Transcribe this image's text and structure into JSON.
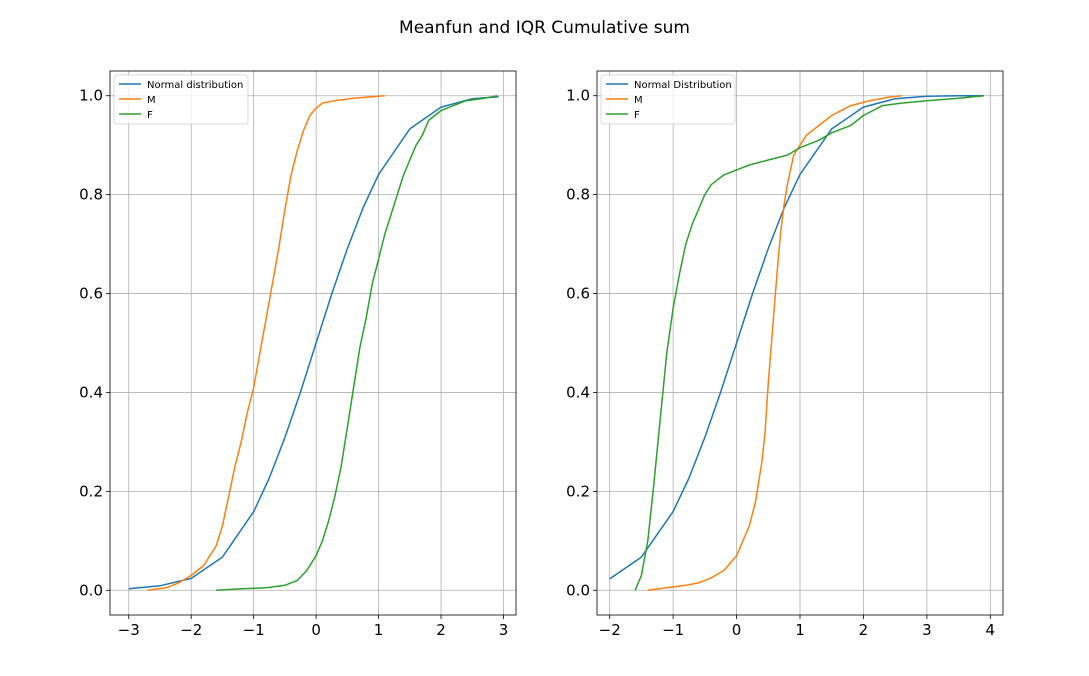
{
  "figure": {
    "title": "Meanfun and IQR Cumulative sum"
  },
  "chart_data": [
    {
      "type": "line",
      "title": "",
      "xlabel": "",
      "ylabel": "",
      "xlim": [
        -3.3,
        3.2
      ],
      "ylim": [
        -0.05,
        1.05
      ],
      "xticks": [
        -3,
        -2,
        -1,
        0,
        1,
        2,
        3
      ],
      "xtick_labels": [
        "−3",
        "−2",
        "−1",
        "0",
        "1",
        "2",
        "3"
      ],
      "yticks": [
        0.0,
        0.2,
        0.4,
        0.6,
        0.8,
        1.0
      ],
      "ytick_labels": [
        "0.0",
        "0.2",
        "0.4",
        "0.6",
        "0.8",
        "1.0"
      ],
      "grid": true,
      "legend_position": "top-left",
      "series": [
        {
          "name": "Normal distribution",
          "color": "#1f77b4",
          "x": [
            -3,
            -2.5,
            -2,
            -1.5,
            -1,
            -0.75,
            -0.5,
            -0.25,
            0,
            0.25,
            0.5,
            0.75,
            1,
            1.5,
            2,
            2.5,
            2.92
          ],
          "y": [
            0.003,
            0.009,
            0.024,
            0.067,
            0.159,
            0.227,
            0.309,
            0.401,
            0.5,
            0.599,
            0.691,
            0.773,
            0.841,
            0.933,
            0.977,
            0.994,
            0.998
          ]
        },
        {
          "name": "M",
          "color": "#ff7f0e",
          "x": [
            -2.7,
            -2.4,
            -2.2,
            -2.0,
            -1.8,
            -1.6,
            -1.5,
            -1.4,
            -1.3,
            -1.2,
            -1.1,
            -1.0,
            -0.9,
            -0.8,
            -0.7,
            -0.6,
            -0.5,
            -0.4,
            -0.3,
            -0.2,
            -0.1,
            0.0,
            0.1,
            0.3,
            0.6,
            0.9,
            1.1
          ],
          "y": [
            0.0,
            0.005,
            0.015,
            0.03,
            0.05,
            0.09,
            0.13,
            0.19,
            0.25,
            0.3,
            0.36,
            0.41,
            0.48,
            0.55,
            0.62,
            0.69,
            0.77,
            0.84,
            0.89,
            0.93,
            0.96,
            0.975,
            0.985,
            0.99,
            0.995,
            0.998,
            1.0
          ]
        },
        {
          "name": "F",
          "color": "#2ca02c",
          "x": [
            -1.6,
            -1.2,
            -0.8,
            -0.5,
            -0.3,
            -0.15,
            0.0,
            0.1,
            0.2,
            0.3,
            0.4,
            0.5,
            0.6,
            0.7,
            0.8,
            0.9,
            1.0,
            1.1,
            1.2,
            1.3,
            1.4,
            1.5,
            1.6,
            1.7,
            1.8,
            1.9,
            2.0,
            2.2,
            2.4,
            2.7,
            2.9
          ],
          "y": [
            0.0,
            0.003,
            0.005,
            0.01,
            0.02,
            0.04,
            0.07,
            0.1,
            0.14,
            0.19,
            0.25,
            0.33,
            0.41,
            0.49,
            0.55,
            0.62,
            0.67,
            0.72,
            0.76,
            0.8,
            0.84,
            0.87,
            0.9,
            0.92,
            0.95,
            0.96,
            0.97,
            0.98,
            0.99,
            0.995,
            1.0
          ]
        }
      ]
    },
    {
      "type": "line",
      "title": "",
      "xlabel": "",
      "ylabel": "",
      "xlim": [
        -2.2,
        4.2
      ],
      "ylim": [
        -0.05,
        1.05
      ],
      "xticks": [
        -2,
        -1,
        0,
        1,
        2,
        3,
        4
      ],
      "xtick_labels": [
        "−2",
        "−1",
        "0",
        "1",
        "2",
        "3",
        "4"
      ],
      "yticks": [
        0.0,
        0.2,
        0.4,
        0.6,
        0.8,
        1.0
      ],
      "ytick_labels": [
        "0.0",
        "0.2",
        "0.4",
        "0.6",
        "0.8",
        "1.0"
      ],
      "grid": true,
      "legend_position": "top-left",
      "series": [
        {
          "name": "Normal Distribution",
          "color": "#1f77b4",
          "x": [
            -2,
            -1.5,
            -1,
            -0.75,
            -0.5,
            -0.25,
            0,
            0.25,
            0.5,
            0.75,
            1,
            1.5,
            2,
            2.5,
            3,
            3.5,
            3.9
          ],
          "y": [
            0.023,
            0.067,
            0.159,
            0.227,
            0.309,
            0.401,
            0.5,
            0.599,
            0.691,
            0.773,
            0.841,
            0.933,
            0.977,
            0.994,
            0.999,
            1.0,
            1.0
          ]
        },
        {
          "name": "M",
          "color": "#ff7f0e",
          "x": [
            -1.4,
            -1.1,
            -0.8,
            -0.6,
            -0.4,
            -0.2,
            -0.1,
            0.0,
            0.1,
            0.2,
            0.3,
            0.4,
            0.45,
            0.5,
            0.55,
            0.6,
            0.65,
            0.7,
            0.75,
            0.8,
            0.85,
            0.9,
            1.0,
            1.1,
            1.3,
            1.5,
            1.8,
            2.1,
            2.4,
            2.6
          ],
          "y": [
            0.0,
            0.005,
            0.01,
            0.015,
            0.025,
            0.04,
            0.055,
            0.07,
            0.1,
            0.13,
            0.18,
            0.26,
            0.32,
            0.42,
            0.5,
            0.58,
            0.66,
            0.73,
            0.78,
            0.82,
            0.85,
            0.88,
            0.9,
            0.92,
            0.94,
            0.96,
            0.98,
            0.99,
            0.997,
            1.0
          ]
        },
        {
          "name": "F",
          "color": "#2ca02c",
          "x": [
            -1.6,
            -1.5,
            -1.4,
            -1.3,
            -1.2,
            -1.1,
            -1.0,
            -0.9,
            -0.8,
            -0.7,
            -0.6,
            -0.5,
            -0.4,
            -0.3,
            -0.2,
            -0.1,
            0.0,
            0.2,
            0.5,
            0.8,
            1.0,
            1.3,
            1.5,
            1.8,
            2.0,
            2.3,
            2.6,
            3.0,
            3.5,
            3.9
          ],
          "y": [
            0.0,
            0.03,
            0.1,
            0.22,
            0.35,
            0.48,
            0.57,
            0.64,
            0.7,
            0.74,
            0.77,
            0.8,
            0.82,
            0.83,
            0.84,
            0.845,
            0.85,
            0.86,
            0.87,
            0.88,
            0.895,
            0.91,
            0.925,
            0.94,
            0.96,
            0.98,
            0.985,
            0.99,
            0.995,
            1.0
          ]
        }
      ]
    }
  ]
}
